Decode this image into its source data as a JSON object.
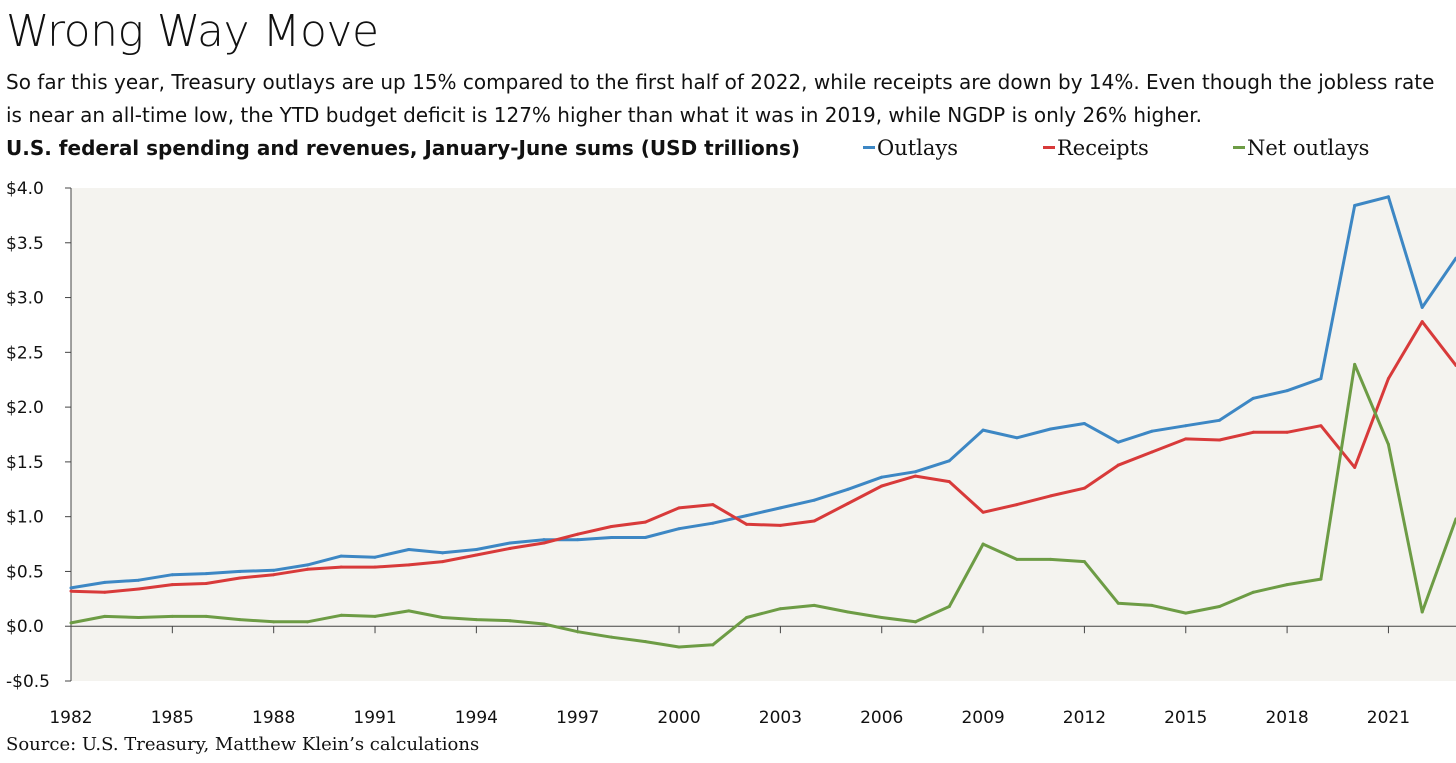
{
  "header": {
    "title": "Wrong Way Move",
    "subtitle": "So far this year, Treasury outlays are up 15% compared to the first half of 2022, while receipts are down by 14%. Even though the jobless rate is near an all-time low, the YTD budget deficit is 127% higher than what it was in 2019, while NGDP is only 26% higher."
  },
  "footer": {
    "source": "Source: U.S. Treasury, Matthew Klein’s calculations"
  },
  "colors": {
    "plot_background": "#f4f3ef",
    "outlays": "#3d87c4",
    "receipts": "#d83a3a",
    "net_outlays": "#6d9c45"
  },
  "chart_data": {
    "type": "line",
    "title": "U.S. federal spending and revenues, January-June sums (USD trillions)",
    "xlabel": "",
    "ylabel": "",
    "ylim": [
      -0.5,
      4.0
    ],
    "xlim": [
      1982,
      2023
    ],
    "grid": false,
    "legend_placement": "top-right",
    "y_ticks": [
      -0.5,
      0.0,
      0.5,
      1.0,
      1.5,
      2.0,
      2.5,
      3.0,
      3.5,
      4.0
    ],
    "y_tick_labels": [
      "-$0.5",
      "$0.0",
      "$0.5",
      "$1.0",
      "$1.5",
      "$2.0",
      "$2.5",
      "$3.0",
      "$3.5",
      "$4.0"
    ],
    "x_ticks": [
      1982,
      1985,
      1988,
      1991,
      1994,
      1997,
      2000,
      2003,
      2006,
      2009,
      2012,
      2015,
      2018,
      2021
    ],
    "x_tick_labels": [
      "1982",
      "1985",
      "1988",
      "1991",
      "1994",
      "1997",
      "2000",
      "2003",
      "2006",
      "2009",
      "2012",
      "2015",
      "2018",
      "2021"
    ],
    "x": [
      1982,
      1983,
      1984,
      1985,
      1986,
      1987,
      1988,
      1989,
      1990,
      1991,
      1992,
      1993,
      1994,
      1995,
      1996,
      1997,
      1998,
      1999,
      2000,
      2001,
      2002,
      2003,
      2004,
      2005,
      2006,
      2007,
      2008,
      2009,
      2010,
      2011,
      2012,
      2013,
      2014,
      2015,
      2016,
      2017,
      2018,
      2019,
      2020,
      2021,
      2022,
      2023
    ],
    "series": [
      {
        "name": "Outlays",
        "values": [
          0.35,
          0.4,
          0.42,
          0.47,
          0.48,
          0.5,
          0.51,
          0.56,
          0.64,
          0.63,
          0.7,
          0.67,
          0.7,
          0.76,
          0.79,
          0.79,
          0.81,
          0.81,
          0.89,
          0.94,
          1.01,
          1.08,
          1.15,
          1.25,
          1.36,
          1.41,
          1.51,
          1.79,
          1.72,
          1.8,
          1.85,
          1.68,
          1.78,
          1.83,
          1.88,
          2.08,
          2.15,
          2.26,
          3.84,
          3.92,
          2.91,
          3.36
        ]
      },
      {
        "name": "Receipts",
        "values": [
          0.32,
          0.31,
          0.34,
          0.38,
          0.39,
          0.44,
          0.47,
          0.52,
          0.54,
          0.54,
          0.56,
          0.59,
          0.65,
          0.71,
          0.76,
          0.84,
          0.91,
          0.95,
          1.08,
          1.11,
          0.93,
          0.92,
          0.96,
          1.12,
          1.28,
          1.37,
          1.32,
          1.04,
          1.11,
          1.19,
          1.26,
          1.47,
          1.59,
          1.71,
          1.7,
          1.77,
          1.77,
          1.83,
          1.45,
          2.26,
          2.78,
          2.38
        ]
      },
      {
        "name": "Net outlays",
        "values": [
          0.03,
          0.09,
          0.08,
          0.09,
          0.09,
          0.06,
          0.04,
          0.04,
          0.1,
          0.09,
          0.14,
          0.08,
          0.06,
          0.05,
          0.02,
          -0.05,
          -0.1,
          -0.14,
          -0.19,
          -0.17,
          0.08,
          0.16,
          0.19,
          0.13,
          0.08,
          0.04,
          0.18,
          0.75,
          0.61,
          0.61,
          0.59,
          0.21,
          0.19,
          0.12,
          0.18,
          0.31,
          0.38,
          0.43,
          2.39,
          1.66,
          0.13,
          0.98
        ]
      }
    ]
  }
}
